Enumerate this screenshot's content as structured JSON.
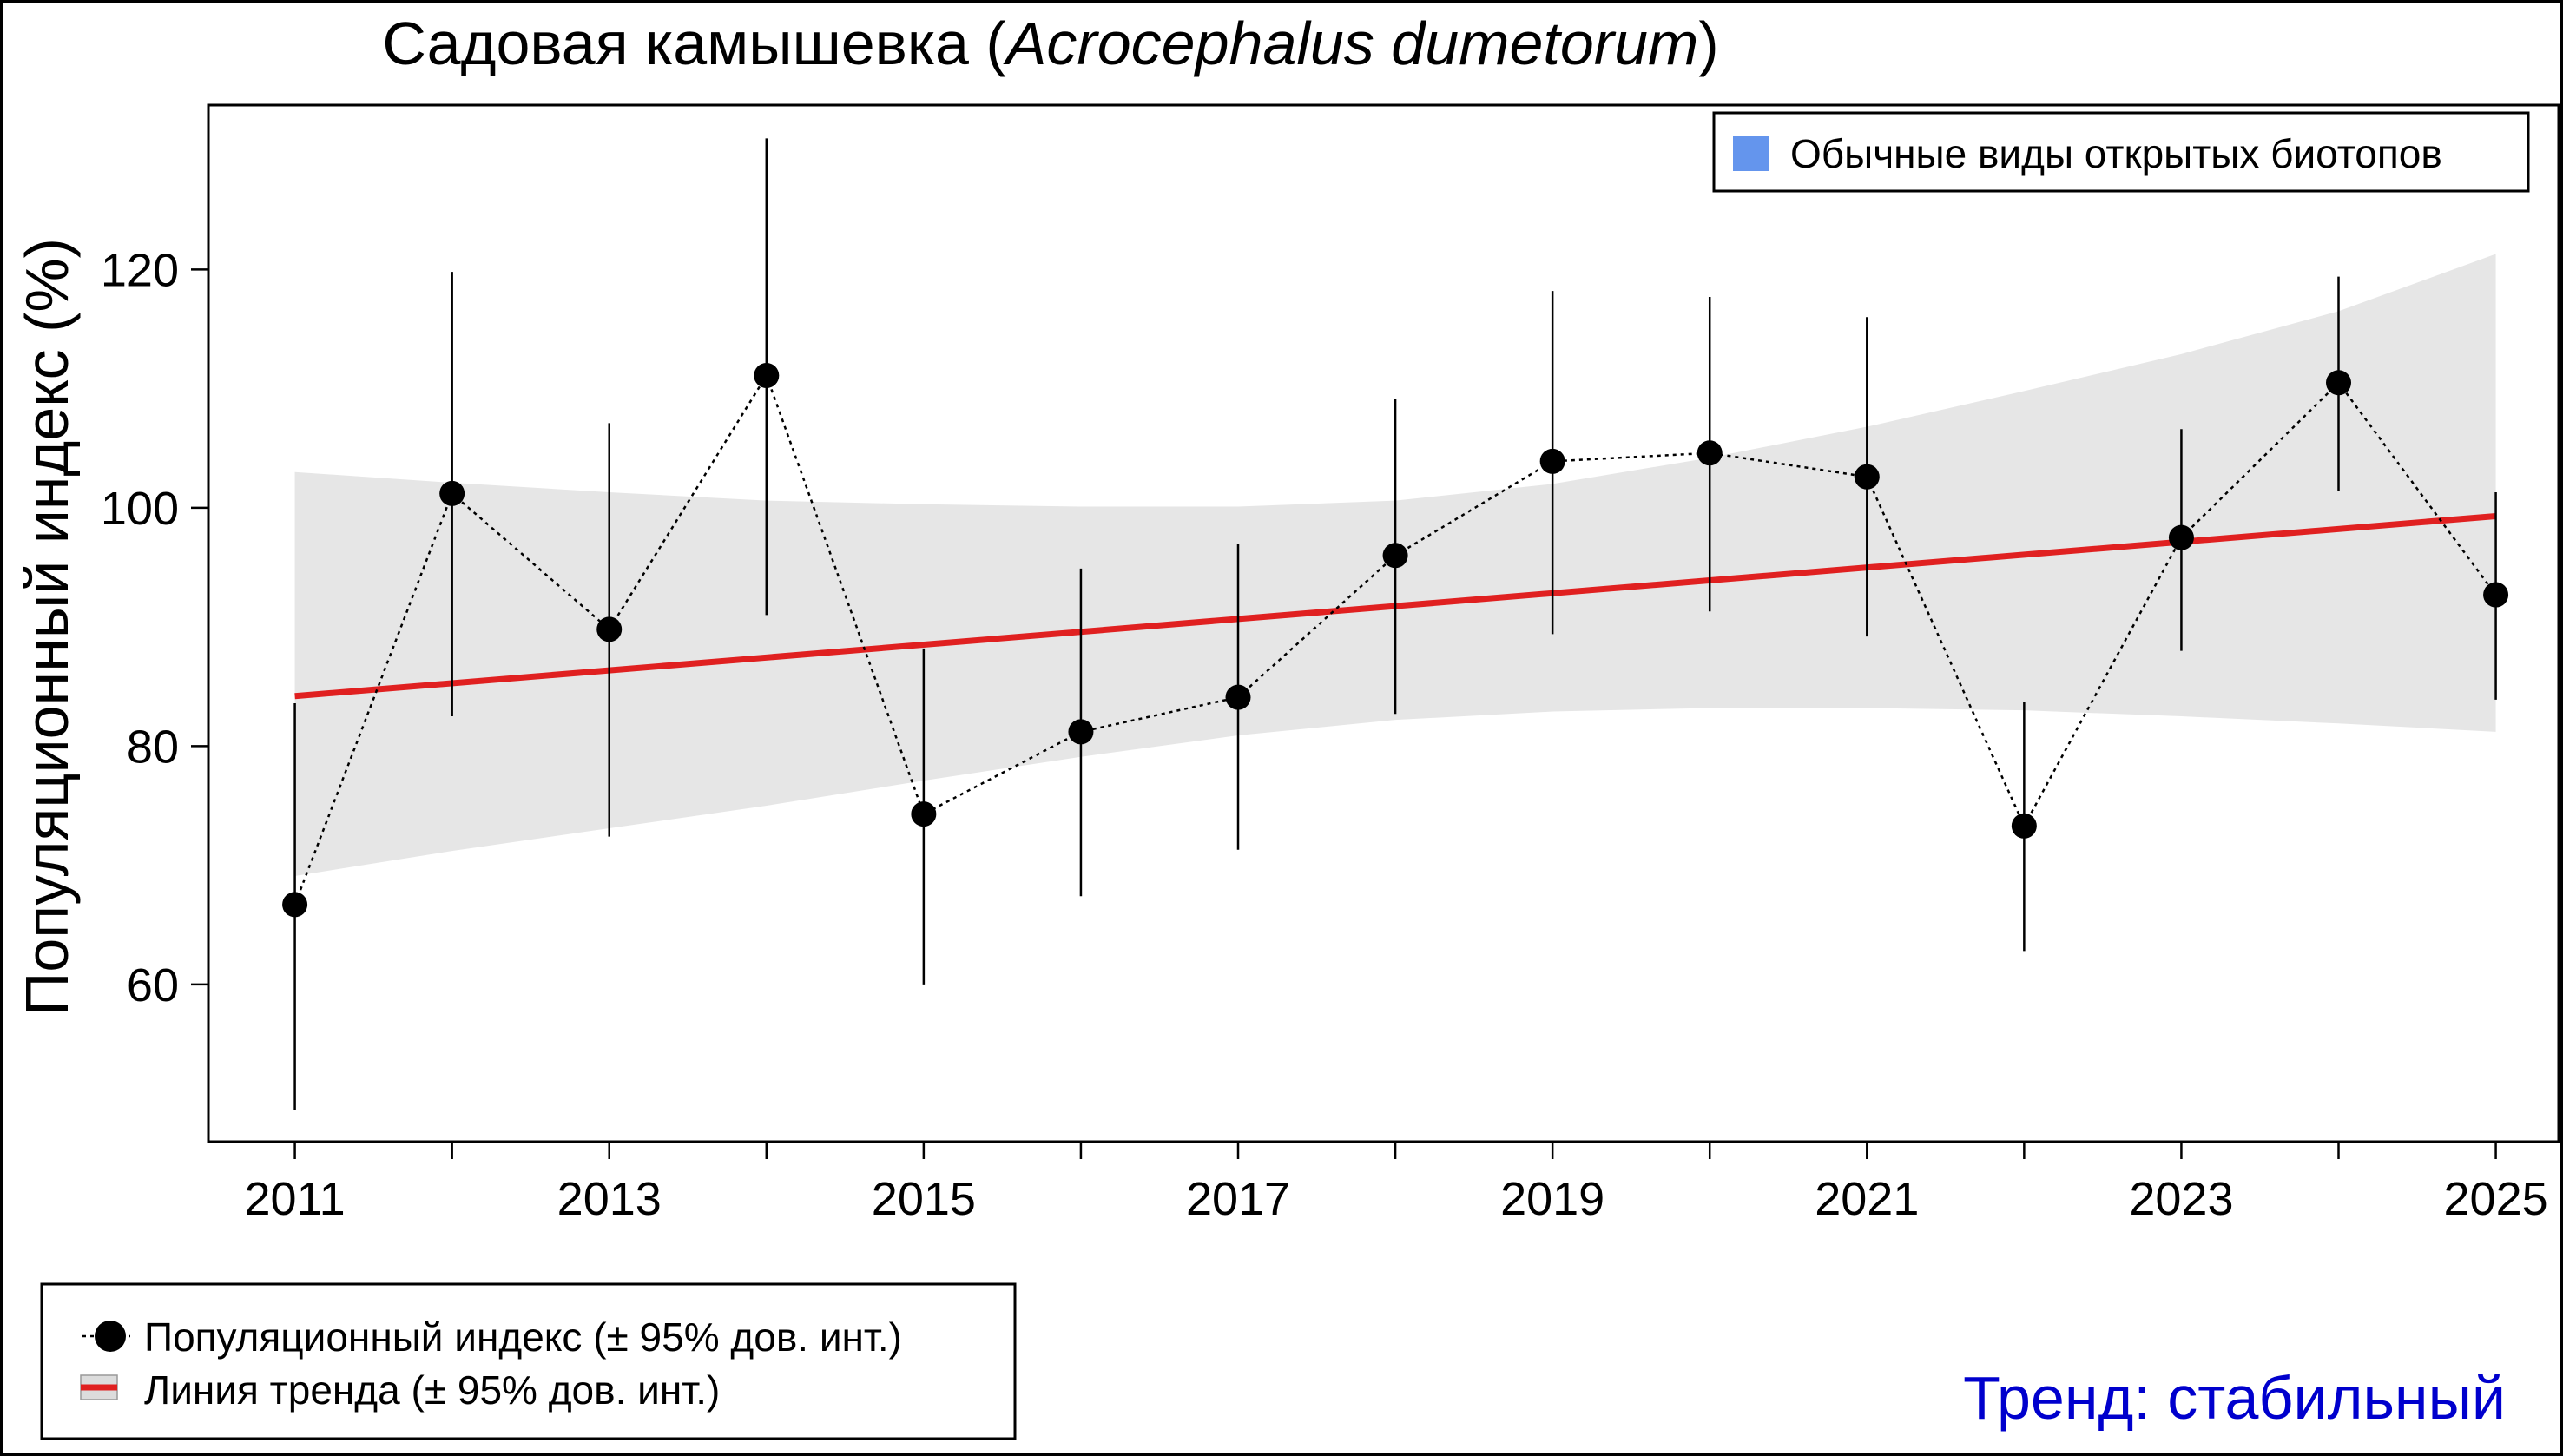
{
  "chart_data": {
    "type": "line",
    "title_main": "Садовая камышевка (",
    "title_species": "Acrocephalus dumetorum",
    "title_close": ")",
    "ylabel": "Популяционный индекс (%)",
    "xlabel": "",
    "xlim": [
      2010.45,
      2025.4
    ],
    "ylim": [
      46.8,
      133.8
    ],
    "x_ticks": [
      2011,
      2012,
      2013,
      2014,
      2015,
      2016,
      2017,
      2018,
      2019,
      2020,
      2021,
      2022,
      2023,
      2024,
      2025
    ],
    "x_tick_labels": [
      "2011",
      "",
      "2013",
      "",
      "2015",
      "",
      "2017",
      "",
      "2019",
      "",
      "2021",
      "",
      "2023",
      "",
      "2025"
    ],
    "y_ticks": [
      60,
      80,
      100,
      120
    ],
    "y_tick_labels": [
      "60",
      "80",
      "100",
      "120"
    ],
    "series": [
      {
        "name": "Популяционный индекс (± 95% дов. инт.)",
        "x": [
          2011,
          2012,
          2013,
          2014,
          2015,
          2016,
          2017,
          2018,
          2019,
          2020,
          2021,
          2022,
          2023,
          2024,
          2025
        ],
        "values": [
          66.7,
          101.2,
          89.8,
          111.1,
          74.3,
          81.2,
          84.1,
          96.0,
          103.9,
          104.6,
          102.6,
          73.3,
          97.5,
          110.5,
          92.7
        ],
        "lower": [
          49.5,
          82.5,
          72.4,
          91.0,
          60.0,
          67.4,
          71.3,
          82.7,
          89.4,
          91.3,
          89.2,
          62.8,
          88.0,
          101.4,
          83.9
        ],
        "upper": [
          83.6,
          119.8,
          107.1,
          131.0,
          88.2,
          94.9,
          97.0,
          109.1,
          118.2,
          117.7,
          116.0,
          83.7,
          106.6,
          119.4,
          101.3
        ],
        "color": "#000000"
      }
    ],
    "trend": {
      "name": "Линия тренда (± 95% дов. инт.)",
      "x": [
        2011,
        2025
      ],
      "values": [
        84.2,
        99.3
      ],
      "band_x": [
        2011,
        2012,
        2013,
        2014,
        2015,
        2016,
        2017,
        2018,
        2019,
        2020,
        2021,
        2022,
        2023,
        2024,
        2025
      ],
      "band_upper": [
        103.0,
        102.1,
        101.3,
        100.6,
        100.3,
        100.1,
        100.1,
        100.6,
        102.0,
        104.2,
        106.8,
        109.8,
        112.9,
        116.5,
        121.3
      ],
      "band_lower": [
        69.1,
        71.2,
        73.1,
        75.0,
        77.1,
        79.1,
        80.9,
        82.2,
        82.9,
        83.2,
        83.2,
        83.0,
        82.5,
        81.9,
        81.2
      ],
      "color": "#e02020",
      "band_color": "#e6e6e6"
    },
    "habitat_legend": {
      "label": "Обычные виды открытых биотопов",
      "color": "#6495ed",
      "placement": "top-right"
    }
  },
  "legend": {
    "index_label": "Популяционный индекс (± 95% дов. инт.)",
    "trend_label": "Линия тренда (± 95% дов. инт.)"
  },
  "trend_status": {
    "text": "Тренд: стабильный",
    "color": "#0000cd"
  }
}
